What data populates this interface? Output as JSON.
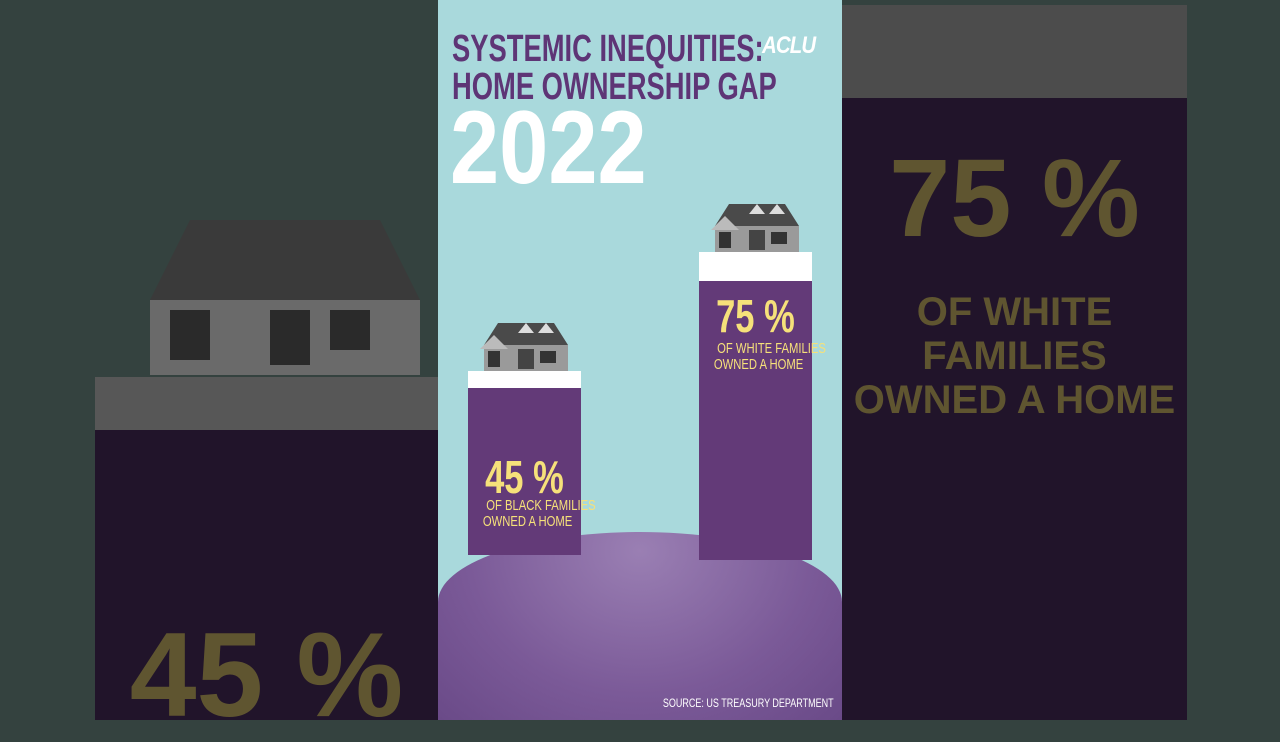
{
  "title_line1": "SYSTEMIC INEQUITIES:",
  "title_line2": "HOME OWNERSHIP GAP",
  "year": "2022",
  "logo": "ACLU",
  "source": "SOURCE: US TREASURY DEPARTMENT",
  "chart_data": {
    "type": "bar",
    "categories": [
      "Black families",
      "White families"
    ],
    "values": [
      45,
      75
    ],
    "ylim": [
      0,
      100
    ],
    "data_labels": [
      "45 %",
      "75 %"
    ],
    "captions": [
      [
        "OF BLACK FAMILIES",
        "OWNED A HOME"
      ],
      [
        "OF WHITE FAMILIES",
        "OWNED A HOME"
      ]
    ],
    "colors": {
      "bar": "#633a78",
      "label": "#f6e17a",
      "background": "#a9d9dc",
      "title": "#5e3576"
    }
  }
}
